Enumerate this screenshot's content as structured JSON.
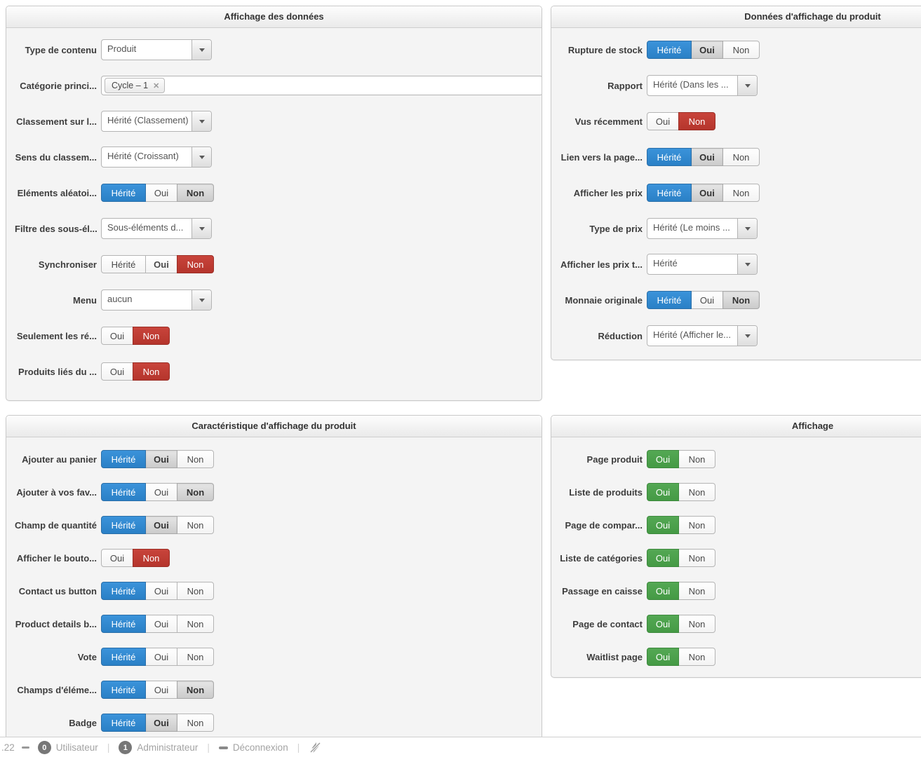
{
  "colors": {
    "accent_blue": "#2f87d0",
    "accent_red": "#bf3a31",
    "accent_green": "#4aa34c"
  },
  "icons": {
    "remove_tag": "✕",
    "dropdown_arrow": "caret-down",
    "logout": "minus",
    "no_flash": "crossed-lightning"
  },
  "panels": [
    {
      "title": "Affichage des données",
      "rows": [
        {
          "label": "Type de contenu",
          "control": {
            "type": "dropdown",
            "value": "Produit"
          }
        },
        {
          "label": "Catégorie princi...",
          "control": {
            "type": "tagfield",
            "tags": [
              "Cycle – 1"
            ]
          }
        },
        {
          "label": "Classement sur l...",
          "control": {
            "type": "dropdown",
            "value": "Hérité (Classement)"
          }
        },
        {
          "label": "Sens du classem...",
          "control": {
            "type": "dropdown",
            "value": "Hérité (Croissant)"
          }
        },
        {
          "label": "Eléments aléatoi...",
          "control": {
            "type": "toggle",
            "buttons": [
              {
                "label": "Hérité",
                "state": "blue"
              },
              {
                "label": "Oui",
                "state": "plain"
              },
              {
                "label": "Non",
                "state": "gray"
              }
            ]
          }
        },
        {
          "label": "Filtre des sous-él...",
          "control": {
            "type": "dropdown",
            "value": "Sous-éléments d..."
          }
        },
        {
          "label": "Synchroniser",
          "control": {
            "type": "toggle",
            "buttons": [
              {
                "label": "Hérité",
                "state": "plain"
              },
              {
                "label": "Oui",
                "state": "plain-bold"
              },
              {
                "label": "Non",
                "state": "red"
              }
            ]
          }
        },
        {
          "label": "Menu",
          "control": {
            "type": "dropdown",
            "value": "aucun"
          }
        },
        {
          "label": "Seulement les ré...",
          "control": {
            "type": "toggle",
            "buttons": [
              {
                "label": "Oui",
                "state": "plain"
              },
              {
                "label": "Non",
                "state": "red"
              }
            ]
          }
        },
        {
          "label": "Produits liés du ...",
          "control": {
            "type": "toggle",
            "buttons": [
              {
                "label": "Oui",
                "state": "plain"
              },
              {
                "label": "Non",
                "state": "red"
              }
            ]
          }
        }
      ]
    },
    {
      "title": "Données d'affichage du produit",
      "rows": [
        {
          "label": "Rupture de stock",
          "control": {
            "type": "toggle",
            "buttons": [
              {
                "label": "Hérité",
                "state": "blue"
              },
              {
                "label": "Oui",
                "state": "gray"
              },
              {
                "label": "Non",
                "state": "plain"
              }
            ]
          }
        },
        {
          "label": "Rapport",
          "control": {
            "type": "dropdown",
            "value": "Hérité (Dans les ..."
          }
        },
        {
          "label": "Vus récemment",
          "control": {
            "type": "toggle",
            "buttons": [
              {
                "label": "Oui",
                "state": "plain"
              },
              {
                "label": "Non",
                "state": "red"
              }
            ]
          }
        },
        {
          "label": "Lien vers la page...",
          "control": {
            "type": "toggle",
            "buttons": [
              {
                "label": "Hérité",
                "state": "blue"
              },
              {
                "label": "Oui",
                "state": "gray"
              },
              {
                "label": "Non",
                "state": "plain"
              }
            ]
          }
        },
        {
          "label": "Afficher les prix",
          "control": {
            "type": "toggle",
            "buttons": [
              {
                "label": "Hérité",
                "state": "blue"
              },
              {
                "label": "Oui",
                "state": "gray"
              },
              {
                "label": "Non",
                "state": "plain"
              }
            ]
          }
        },
        {
          "label": "Type de prix",
          "control": {
            "type": "dropdown",
            "value": "Hérité (Le moins ..."
          }
        },
        {
          "label": "Afficher les prix t...",
          "control": {
            "type": "dropdown",
            "value": "Hérité"
          }
        },
        {
          "label": "Monnaie originale",
          "control": {
            "type": "toggle",
            "buttons": [
              {
                "label": "Hérité",
                "state": "blue"
              },
              {
                "label": "Oui",
                "state": "plain"
              },
              {
                "label": "Non",
                "state": "gray"
              }
            ]
          }
        },
        {
          "label": "Réduction",
          "control": {
            "type": "dropdown",
            "value": "Hérité (Afficher le..."
          }
        }
      ]
    },
    {
      "title": "Caractéristique d'affichage du produit",
      "rows": [
        {
          "label": "Ajouter au panier",
          "control": {
            "type": "toggle",
            "buttons": [
              {
                "label": "Hérité",
                "state": "blue"
              },
              {
                "label": "Oui",
                "state": "gray"
              },
              {
                "label": "Non",
                "state": "plain"
              }
            ]
          }
        },
        {
          "label": "Ajouter à vos fav...",
          "control": {
            "type": "toggle",
            "buttons": [
              {
                "label": "Hérité",
                "state": "blue"
              },
              {
                "label": "Oui",
                "state": "plain"
              },
              {
                "label": "Non",
                "state": "gray"
              }
            ]
          }
        },
        {
          "label": "Champ de quantité",
          "control": {
            "type": "toggle",
            "buttons": [
              {
                "label": "Hérité",
                "state": "blue"
              },
              {
                "label": "Oui",
                "state": "gray"
              },
              {
                "label": "Non",
                "state": "plain"
              }
            ]
          }
        },
        {
          "label": "Afficher le bouto...",
          "control": {
            "type": "toggle",
            "buttons": [
              {
                "label": "Oui",
                "state": "plain"
              },
              {
                "label": "Non",
                "state": "red"
              }
            ]
          }
        },
        {
          "label": "Contact us button",
          "control": {
            "type": "toggle",
            "buttons": [
              {
                "label": "Hérité",
                "state": "blue"
              },
              {
                "label": "Oui",
                "state": "plain"
              },
              {
                "label": "Non",
                "state": "plain"
              }
            ]
          }
        },
        {
          "label": "Product details b...",
          "control": {
            "type": "toggle",
            "buttons": [
              {
                "label": "Hérité",
                "state": "blue"
              },
              {
                "label": "Oui",
                "state": "plain"
              },
              {
                "label": "Non",
                "state": "plain"
              }
            ]
          }
        },
        {
          "label": "Vote",
          "control": {
            "type": "toggle",
            "buttons": [
              {
                "label": "Hérité",
                "state": "blue"
              },
              {
                "label": "Oui",
                "state": "plain"
              },
              {
                "label": "Non",
                "state": "plain"
              }
            ]
          }
        },
        {
          "label": "Champs d'éléme...",
          "control": {
            "type": "toggle",
            "buttons": [
              {
                "label": "Hérité",
                "state": "blue"
              },
              {
                "label": "Oui",
                "state": "plain"
              },
              {
                "label": "Non",
                "state": "gray"
              }
            ]
          }
        },
        {
          "label": "Badge",
          "control": {
            "type": "toggle",
            "buttons": [
              {
                "label": "Hérité",
                "state": "blue"
              },
              {
                "label": "Oui",
                "state": "gray"
              },
              {
                "label": "Non",
                "state": "plain"
              }
            ]
          }
        }
      ]
    },
    {
      "title": "Affichage",
      "rows": [
        {
          "label": "Page produit",
          "control": {
            "type": "toggle",
            "buttons": [
              {
                "label": "Oui",
                "state": "green"
              },
              {
                "label": "Non",
                "state": "plain"
              }
            ]
          }
        },
        {
          "label": "Liste de produits",
          "control": {
            "type": "toggle",
            "buttons": [
              {
                "label": "Oui",
                "state": "green"
              },
              {
                "label": "Non",
                "state": "plain"
              }
            ]
          }
        },
        {
          "label": "Page de compar...",
          "control": {
            "type": "toggle",
            "buttons": [
              {
                "label": "Oui",
                "state": "green"
              },
              {
                "label": "Non",
                "state": "plain"
              }
            ]
          }
        },
        {
          "label": "Liste de catégories",
          "control": {
            "type": "toggle",
            "buttons": [
              {
                "label": "Oui",
                "state": "green"
              },
              {
                "label": "Non",
                "state": "plain"
              }
            ]
          }
        },
        {
          "label": "Passage en caisse",
          "control": {
            "type": "toggle",
            "buttons": [
              {
                "label": "Oui",
                "state": "green"
              },
              {
                "label": "Non",
                "state": "plain"
              }
            ]
          }
        },
        {
          "label": "Page de contact",
          "control": {
            "type": "toggle",
            "buttons": [
              {
                "label": "Oui",
                "state": "green"
              },
              {
                "label": "Non",
                "state": "plain"
              }
            ]
          }
        },
        {
          "label": "Waitlist page",
          "control": {
            "type": "toggle",
            "buttons": [
              {
                "label": "Oui",
                "state": "green"
              },
              {
                "label": "Non",
                "state": "plain"
              }
            ]
          }
        }
      ]
    }
  ],
  "footer": {
    "version_fragment": ".22",
    "separator": "|",
    "users": [
      {
        "count": "0",
        "label": "Utilisateur"
      },
      {
        "count": "1",
        "label": "Administrateur"
      }
    ],
    "logout_label": "Déconnexion"
  }
}
